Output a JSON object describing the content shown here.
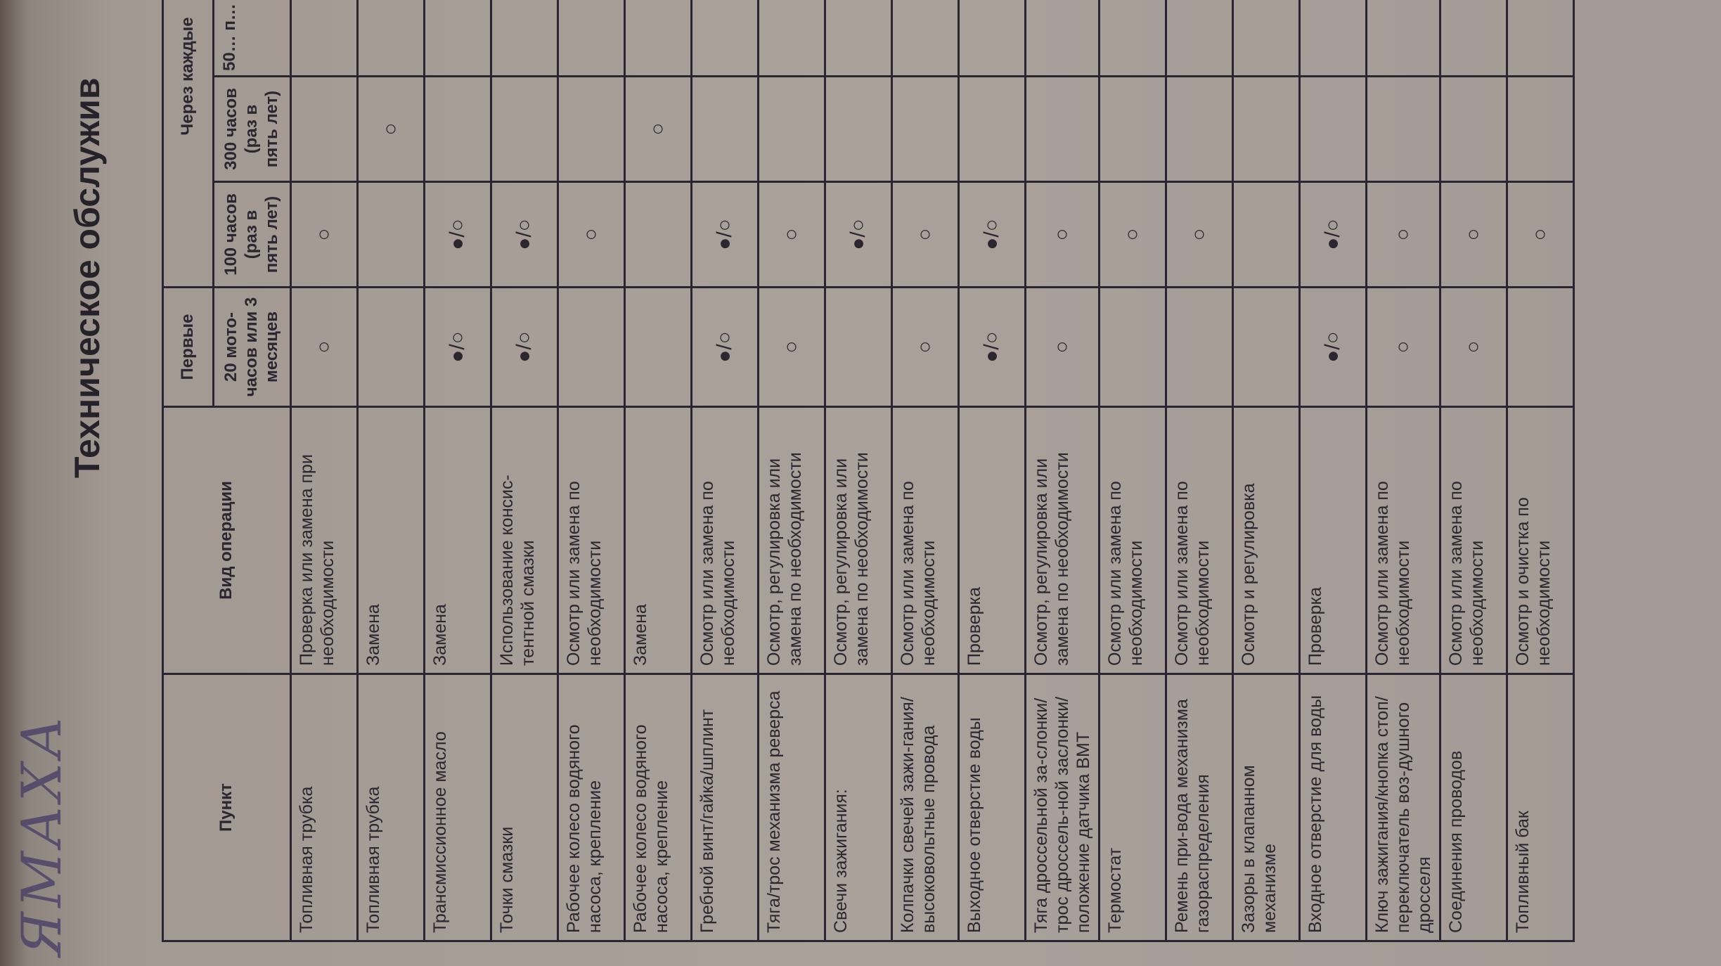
{
  "title": "Техническое обслужив",
  "handwriting": "ЯМАХА",
  "table": {
    "headers": {
      "item": "Пункт",
      "operation": "Вид операции",
      "first": "Первые",
      "every": "Через каждые",
      "col_20": "20 мото-часов или 3 месяцев",
      "col_100": "100 часов (раз в пять лет)",
      "col_300": "300 часов (раз в пять лет)",
      "col_500": "50… п…"
    },
    "rows": [
      {
        "item": "Топливная трубка",
        "operation": "Проверка или замена при необходимости",
        "c20": "○",
        "c100": "○",
        "c300": "",
        "c500": ""
      },
      {
        "item": "Топливная трубка",
        "operation": "Замена",
        "c20": "",
        "c100": "",
        "c300": "○",
        "c500": ""
      },
      {
        "item": "Трансмиссионное масло",
        "operation": "Замена",
        "c20": "●/○",
        "c100": "●/○",
        "c300": "",
        "c500": ""
      },
      {
        "item": "Точки смазки",
        "operation": "Использование консис-тентной смазки",
        "c20": "●/○",
        "c100": "●/○",
        "c300": "",
        "c500": ""
      },
      {
        "item": "Рабочее колесо водяного насоса, крепление",
        "operation": "Осмотр или замена по необходимости",
        "c20": "",
        "c100": "○",
        "c300": "",
        "c500": ""
      },
      {
        "item": "Рабочее колесо водяного насоса, крепление",
        "operation": "Замена",
        "c20": "",
        "c100": "",
        "c300": "○",
        "c500": ""
      },
      {
        "item": "Гребной винт/гайка/шплинт",
        "operation": "Осмотр или замена по необходимости",
        "c20": "●/○",
        "c100": "●/○",
        "c300": "",
        "c500": ""
      },
      {
        "item": "Тяга/трос механизма реверса",
        "operation": "Осмотр, регулировка или замена по необходимости",
        "c20": "○",
        "c100": "○",
        "c300": "",
        "c500": ""
      },
      {
        "item": "Свечи зажигания:",
        "operation": "Осмотр, регулировка или замена по необходимости",
        "c20": "",
        "c100": "●/○",
        "c300": "",
        "c500": ""
      },
      {
        "item": "Колпачки свечей зажи-гания/высоковольтные провода",
        "operation": "Осмотр или замена по необходимости",
        "c20": "○",
        "c100": "○",
        "c300": "",
        "c500": ""
      },
      {
        "item": "Выходное отверстие воды",
        "operation": "Проверка",
        "c20": "●/○",
        "c100": "●/○",
        "c300": "",
        "c500": ""
      },
      {
        "item": "Тяга дроссельной за-слонки/трос дроссель-ной заслонки/положение датчика ВМТ",
        "operation": "Осмотр, регулировка или замена по необходимости",
        "c20": "○",
        "c100": "○",
        "c300": "",
        "c500": ""
      },
      {
        "item": "Термостат",
        "operation": "Осмотр или замена по необходимости",
        "c20": "",
        "c100": "○",
        "c300": "",
        "c500": ""
      },
      {
        "item": "Ремень при-вода механизма газораспределения",
        "operation": "Осмотр или замена по необходимости",
        "c20": "",
        "c100": "○",
        "c300": "",
        "c500": ""
      },
      {
        "item": "Зазоры в клапанном механизме",
        "operation": "Осмотр и регулировка",
        "c20": "",
        "c100": "",
        "c300": "",
        "c500": ""
      },
      {
        "item": "Входное отверстие для воды",
        "operation": "Проверка",
        "c20": "●/○",
        "c100": "●/○",
        "c300": "",
        "c500": ""
      },
      {
        "item": "Ключ зажигания/кнопка стоп/переключатель воз-душного дросселя",
        "operation": "Осмотр или замена по необходимости",
        "c20": "○",
        "c100": "○",
        "c300": "",
        "c500": ""
      },
      {
        "item": "Соединения проводов",
        "operation": "Осмотр или замена по необходимости",
        "c20": "○",
        "c100": "○",
        "c300": "",
        "c500": ""
      },
      {
        "item": "Топливный бак",
        "operation": "Осмотр и очистка по необходимости",
        "c20": "",
        "c100": "○",
        "c300": "",
        "c500": ""
      }
    ]
  }
}
